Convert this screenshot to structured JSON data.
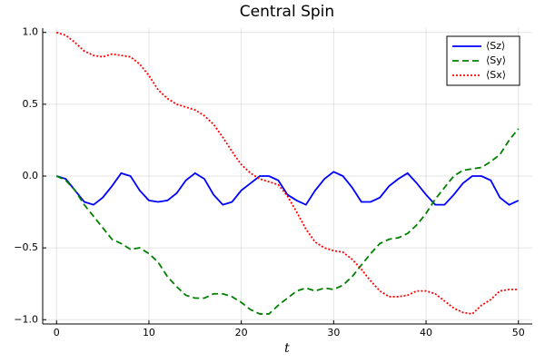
{
  "chart_data": {
    "type": "line",
    "title": "Central Spin",
    "x_label": "t",
    "x": [
      0,
      1,
      2,
      3,
      4,
      5,
      6,
      7,
      8,
      9,
      10,
      11,
      12,
      13,
      14,
      15,
      16,
      17,
      18,
      19,
      20,
      21,
      22,
      23,
      24,
      25,
      26,
      27,
      28,
      29,
      30,
      31,
      32,
      33,
      34,
      35,
      36,
      37,
      38,
      39,
      40,
      41,
      42,
      43,
      44,
      45,
      46,
      47,
      48,
      49,
      50
    ],
    "series": [
      {
        "name": "⟨Sz⟩",
        "color": "#0000ff",
        "style": "solid",
        "values": [
          0,
          -0.02,
          -0.1,
          -0.18,
          -0.2,
          -0.15,
          -0.07,
          0.02,
          0.0,
          -0.1,
          -0.17,
          -0.18,
          -0.17,
          -0.12,
          -0.03,
          0.02,
          -0.02,
          -0.13,
          -0.2,
          -0.18,
          -0.1,
          -0.05,
          0.0,
          0.0,
          -0.03,
          -0.13,
          -0.17,
          -0.2,
          -0.1,
          -0.02,
          0.03,
          0.0,
          -0.08,
          -0.18,
          -0.18,
          -0.15,
          -0.07,
          -0.02,
          0.02,
          -0.05,
          -0.13,
          -0.2,
          -0.2,
          -0.13,
          -0.05,
          0.0,
          0.0,
          -0.03,
          -0.15,
          -0.2,
          -0.17
        ]
      },
      {
        "name": "⟨Sy⟩",
        "color": "#008000",
        "style": "dashed",
        "values": [
          0,
          -0.03,
          -0.1,
          -0.2,
          -0.28,
          -0.36,
          -0.44,
          -0.47,
          -0.51,
          -0.5,
          -0.54,
          -0.6,
          -0.7,
          -0.77,
          -0.83,
          -0.85,
          -0.85,
          -0.82,
          -0.82,
          -0.84,
          -0.88,
          -0.93,
          -0.96,
          -0.96,
          -0.9,
          -0.85,
          -0.8,
          -0.78,
          -0.8,
          -0.78,
          -0.79,
          -0.76,
          -0.7,
          -0.62,
          -0.54,
          -0.47,
          -0.44,
          -0.43,
          -0.4,
          -0.34,
          -0.26,
          -0.16,
          -0.08,
          0.0,
          0.04,
          0.05,
          0.06,
          0.1,
          0.15,
          0.25,
          0.33
        ]
      },
      {
        "name": "⟨Sx⟩",
        "color": "#ff0000",
        "style": "dotted",
        "values": [
          1.0,
          0.98,
          0.93,
          0.87,
          0.84,
          0.83,
          0.85,
          0.84,
          0.83,
          0.78,
          0.7,
          0.6,
          0.54,
          0.5,
          0.48,
          0.46,
          0.42,
          0.36,
          0.27,
          0.17,
          0.08,
          0.02,
          -0.02,
          -0.04,
          -0.06,
          -0.14,
          -0.25,
          -0.37,
          -0.46,
          -0.5,
          -0.52,
          -0.53,
          -0.58,
          -0.65,
          -0.73,
          -0.8,
          -0.84,
          -0.84,
          -0.83,
          -0.8,
          -0.8,
          -0.82,
          -0.87,
          -0.92,
          -0.95,
          -0.96,
          -0.9,
          -0.86,
          -0.8,
          -0.79,
          -0.79
        ]
      }
    ],
    "xlim": [
      -1.5,
      51.5
    ],
    "ylim": [
      -1.03,
      1.03
    ],
    "xticks": [
      0,
      10,
      20,
      30,
      40,
      50
    ],
    "yticks": [
      {
        "value": -1,
        "label": "−1.0"
      },
      {
        "value": -0.5,
        "label": "−0.5"
      },
      {
        "value": 0,
        "label": "0.0"
      },
      {
        "value": 0.5,
        "label": "0.5"
      },
      {
        "value": 1,
        "label": "1.0"
      }
    ],
    "grid": true,
    "legend": "top-right"
  }
}
